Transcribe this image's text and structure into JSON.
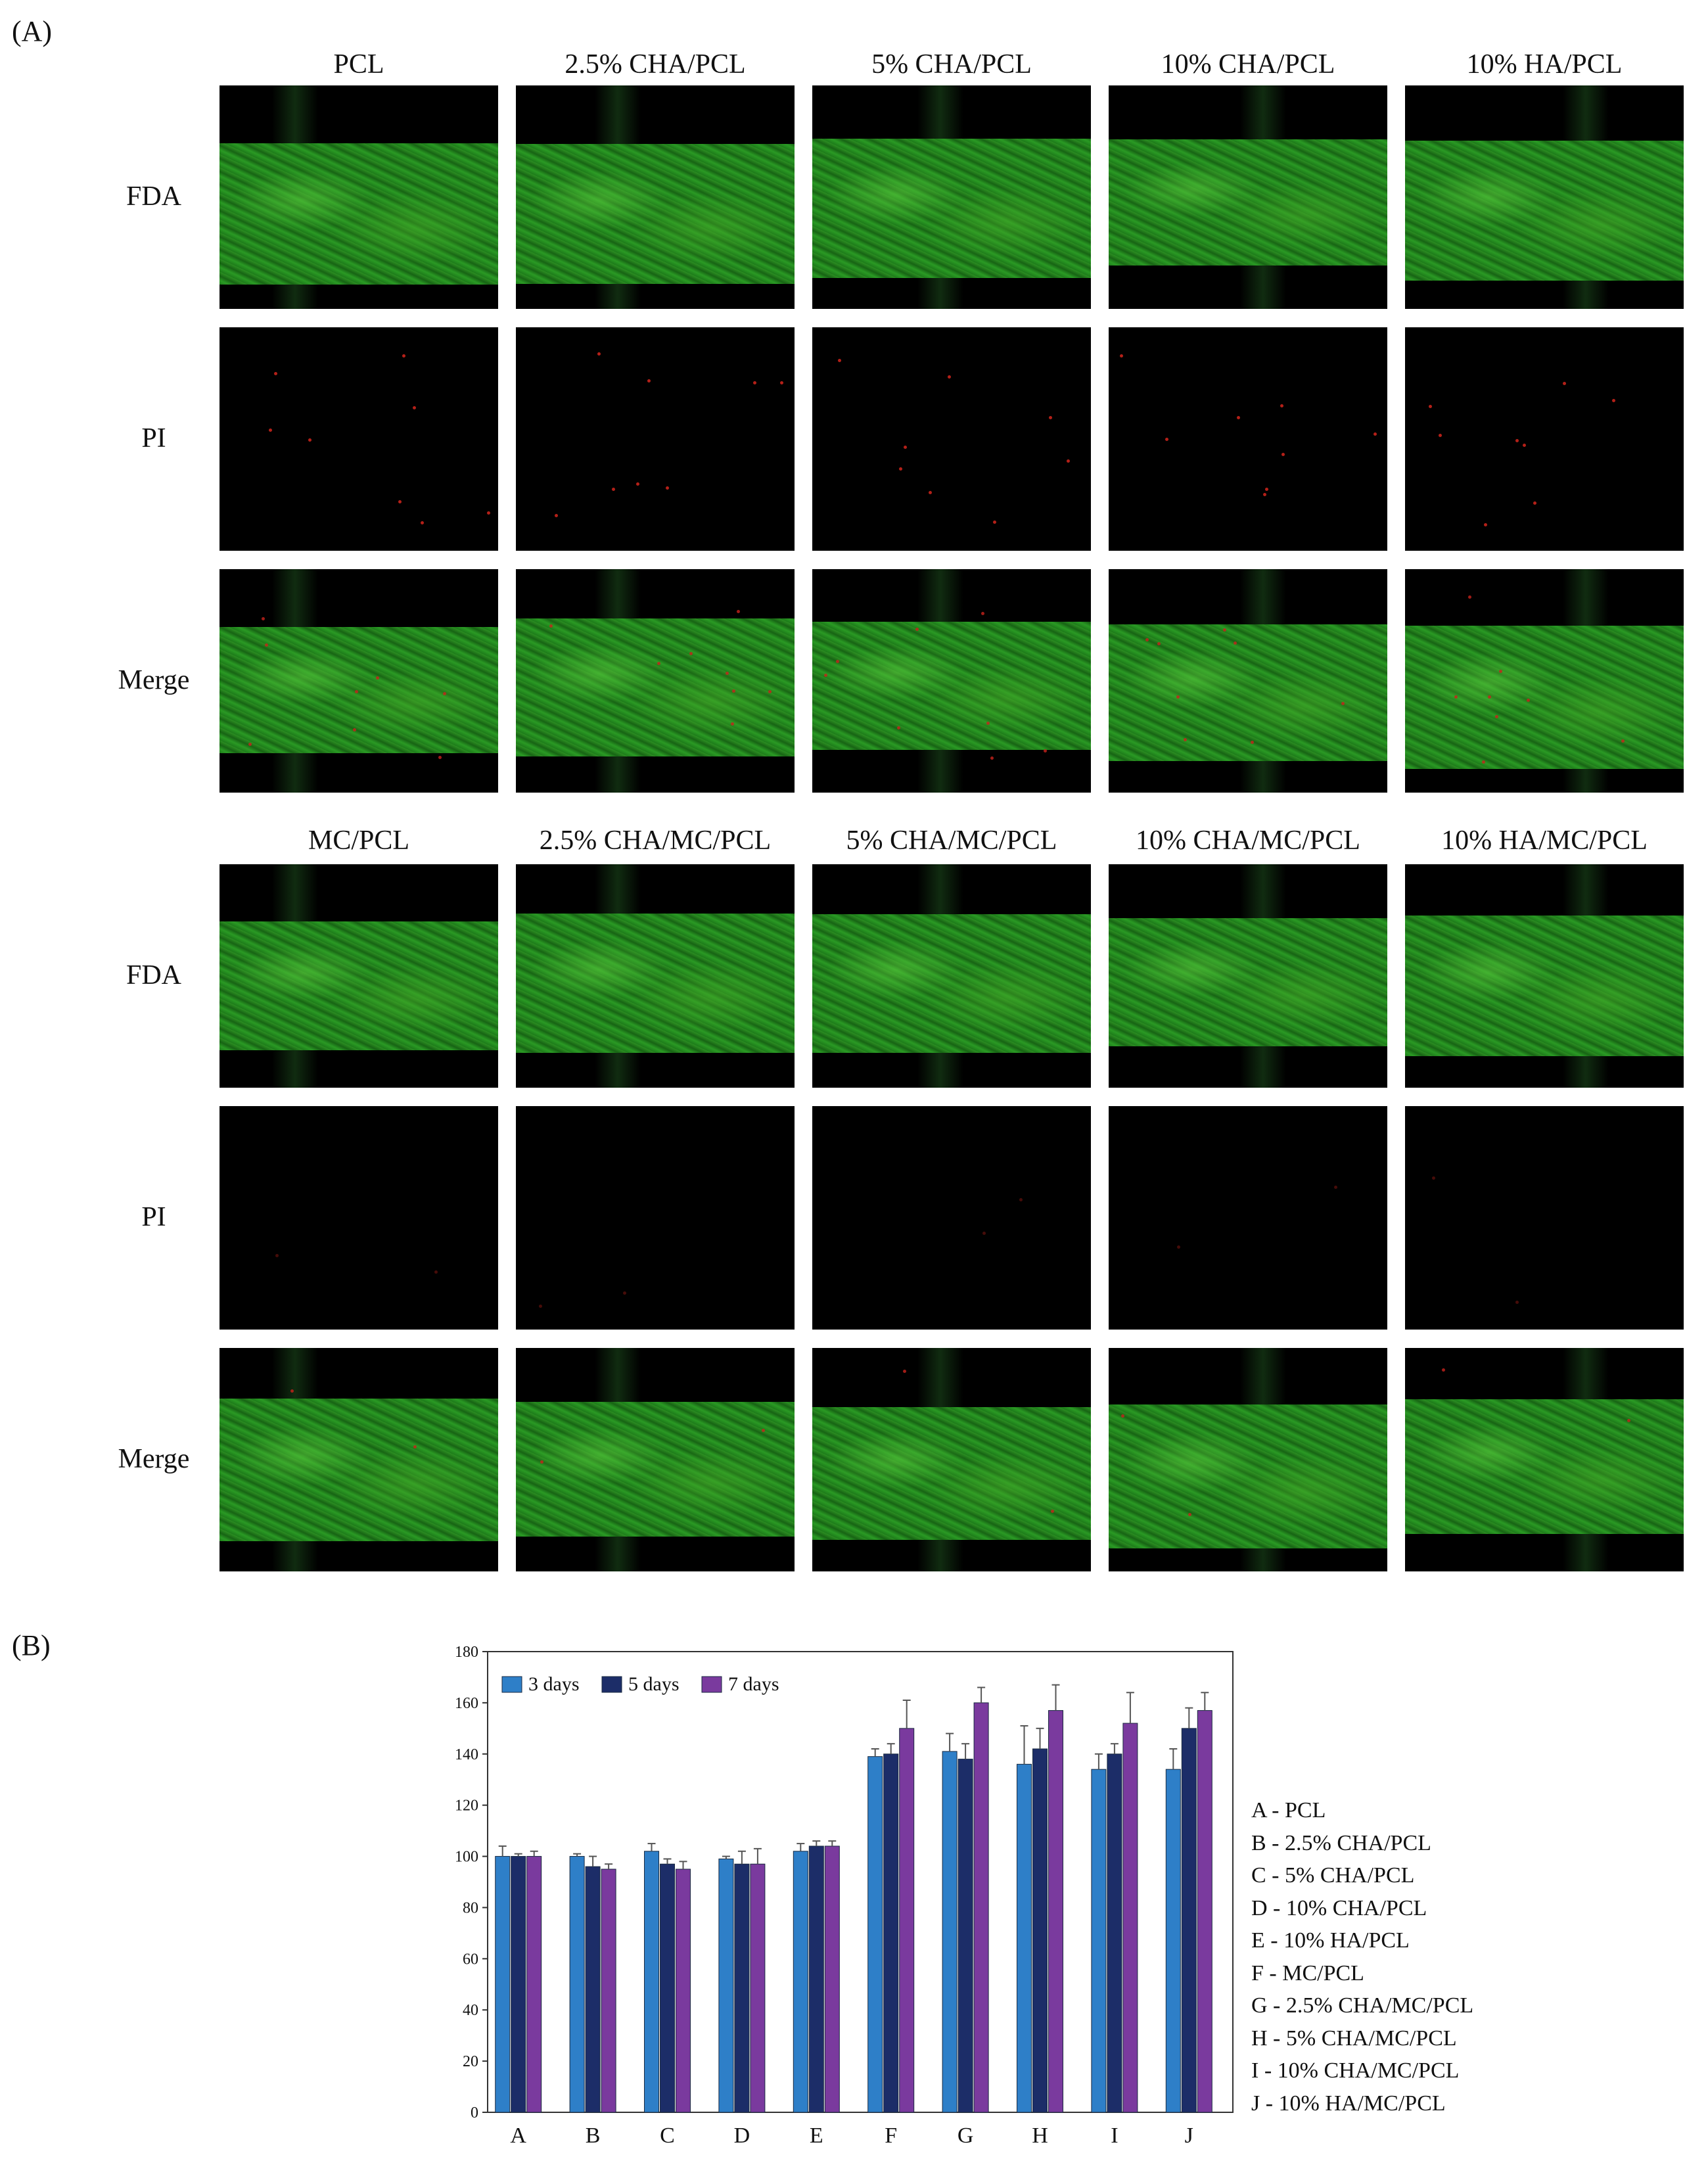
{
  "panel_a": {
    "letter": "(A)",
    "top_columns": [
      "PCL",
      "2.5% CHA/PCL",
      "5% CHA/PCL",
      "10% CHA/PCL",
      "10% HA/PCL"
    ],
    "bottom_columns": [
      "MC/PCL",
      "2.5% CHA/MC/PCL",
      "5% CHA/MC/PCL",
      "10% CHA/MC/PCL",
      "10% HA/MC/PCL"
    ],
    "rows": [
      "FDA",
      "PI",
      "Merge"
    ]
  },
  "panel_b": {
    "letter": "(B)",
    "group_legend": [
      "A - PCL",
      "B - 2.5% CHA/PCL",
      "C - 5% CHA/PCL",
      "D - 10% CHA/PCL",
      "E - 10% HA/PCL",
      "F - MC/PCL",
      "G - 2.5% CHA/MC/PCL",
      "H - 5% CHA/MC/PCL",
      "I - 10% CHA/MC/PCL",
      "J - 10% HA/MC/PCL"
    ]
  },
  "colors": {
    "series_3_days": "#2e7fc8",
    "series_5_days": "#1c2d68",
    "series_7_days": "#7a3a9e",
    "fda_green": "#2a9a24",
    "pi_red": "#c8231b"
  },
  "chart_data": {
    "type": "bar",
    "categories": [
      "A",
      "B",
      "C",
      "D",
      "E",
      "F",
      "G",
      "H",
      "I",
      "J"
    ],
    "series": [
      {
        "name": "3 days",
        "values": [
          100,
          100,
          102,
          99,
          102,
          139,
          141,
          136,
          134,
          134
        ],
        "errors": [
          4,
          1,
          3,
          1,
          3,
          3,
          7,
          15,
          6,
          8
        ]
      },
      {
        "name": "5 days",
        "values": [
          100,
          96,
          97,
          97,
          104,
          140,
          138,
          142,
          140,
          150
        ],
        "errors": [
          1,
          4,
          2,
          5,
          2,
          4,
          6,
          8,
          4,
          8
        ]
      },
      {
        "name": "7 days",
        "values": [
          100,
          95,
          95,
          97,
          104,
          150,
          160,
          157,
          152,
          157
        ],
        "errors": [
          2,
          2,
          3,
          6,
          2,
          11,
          6,
          10,
          12,
          7
        ]
      }
    ],
    "ylim": [
      0,
      180
    ],
    "yticks": [
      0,
      20,
      40,
      60,
      80,
      100,
      120,
      140,
      160,
      180
    ],
    "legend_position": "top-left",
    "grid": false
  }
}
